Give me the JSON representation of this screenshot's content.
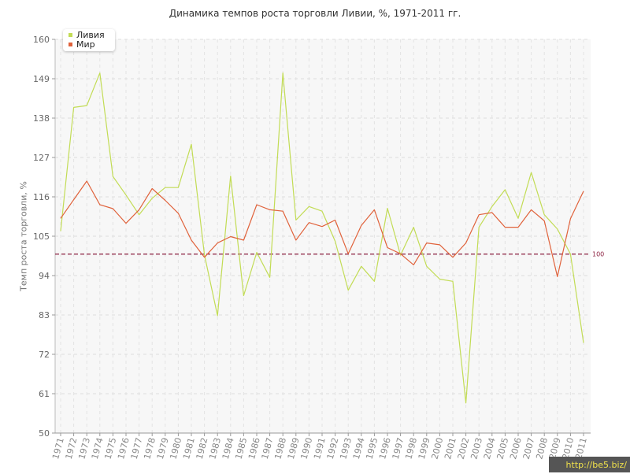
{
  "chart_data": {
    "type": "line",
    "title": "Динамика темпов роста торговли Ливии, %, 1971-2011 гг.",
    "ylabel": "Темп роста торговли, %",
    "xlabel": "",
    "ylim": [
      50,
      160
    ],
    "yticks": [
      "50",
      "61",
      "72",
      "83",
      "94",
      "105",
      "116",
      "127",
      "138",
      "149",
      "160"
    ],
    "x": [
      "1971",
      "1972",
      "1973",
      "1974",
      "1975",
      "1976",
      "1977",
      "1978",
      "1979",
      "1980",
      "1981",
      "1982",
      "1983",
      "1984",
      "1985",
      "1986",
      "1987",
      "1988",
      "1989",
      "1990",
      "1991",
      "1992",
      "1993",
      "1994",
      "1995",
      "1996",
      "1997",
      "1998",
      "1999",
      "2000",
      "2001",
      "2002",
      "2003",
      "2004",
      "2005",
      "2006",
      "2007",
      "2008",
      "2009",
      "2010",
      "2011"
    ],
    "series": [
      {
        "name": "Ливия",
        "color": "#c2dc55",
        "values": [
          106.4,
          141,
          141.5,
          150.6,
          121.7,
          116.5,
          111,
          115.6,
          118.6,
          118.6,
          130.7,
          99.8,
          82.8,
          121.8,
          88.4,
          100.5,
          93.5,
          150.6,
          109.5,
          113.3,
          112,
          103.6,
          89.9,
          96.6,
          92.4,
          112.8,
          99.7,
          107.5,
          96.6,
          93,
          92.4,
          58.4,
          107.5,
          113.3,
          118,
          110,
          122.8,
          111,
          107,
          100,
          75.2
        ]
      },
      {
        "name": "Мир",
        "color": "#e0623b",
        "values": [
          110,
          115.2,
          120.4,
          113.8,
          112.7,
          108.6,
          112.4,
          118.3,
          115,
          111.4,
          103.9,
          99.1,
          103.1,
          104.9,
          103.9,
          113.8,
          112.4,
          112,
          103.9,
          108.8,
          107.7,
          109.5,
          100.1,
          108,
          112.4,
          101.8,
          100.1,
          97,
          103.1,
          102.6,
          99.1,
          103.1,
          111,
          111.6,
          107.5,
          107.5,
          112.4,
          109.3,
          93.7,
          109.9,
          117.6
        ]
      }
    ],
    "reference_line": {
      "value": 100,
      "label": "100",
      "color": "#8b2040"
    },
    "grid": true,
    "legend_position": "top-left"
  },
  "watermark": "http://be5.biz/"
}
